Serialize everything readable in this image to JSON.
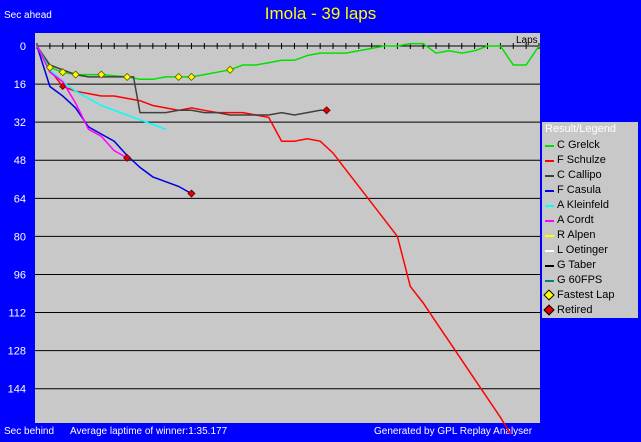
{
  "title": "Imola - 39 laps",
  "labels": {
    "top_left": "Sec ahead",
    "bottom_left": "Sec behind",
    "avg_laptime": "Average laptime of winner:1:35.177",
    "generated": "Generated by GPL Replay Analyser",
    "x_axis": "Laps"
  },
  "legend": {
    "title": "Result/Legend",
    "items": [
      {
        "label": "C Grelck",
        "color": "#00e000",
        "kind": "line"
      },
      {
        "label": "F Schulze",
        "color": "#ff0000",
        "kind": "line"
      },
      {
        "label": "C Callipo",
        "color": "#404040",
        "kind": "line"
      },
      {
        "label": "F Casula",
        "color": "#0000e0",
        "kind": "line"
      },
      {
        "label": "A Kleinfeld",
        "color": "#00ffff",
        "kind": "line"
      },
      {
        "label": "A Cordt",
        "color": "#ff00ff",
        "kind": "line"
      },
      {
        "label": "R Alpen",
        "color": "#ffff00",
        "kind": "line"
      },
      {
        "label": "L Oetinger",
        "color": "#ffffff",
        "kind": "line"
      },
      {
        "label": "G Taber",
        "color": "#000000",
        "kind": "line"
      },
      {
        "label": "G 60FPS",
        "color": "#008080",
        "kind": "line"
      },
      {
        "label": "Fastest Lap",
        "color": "#ffff00",
        "kind": "marker"
      },
      {
        "label": "Retired",
        "color": "#e00000",
        "kind": "marker"
      }
    ]
  },
  "chart_data": {
    "type": "line",
    "title": "Imola - 39 laps",
    "xlabel": "Laps",
    "ylabel": "Sec ahead",
    "x_range": [
      0,
      39
    ],
    "ylim": [
      0,
      160
    ],
    "y_ticks": [
      0,
      16,
      32,
      48,
      64,
      80,
      96,
      112,
      128,
      144
    ],
    "y_inverted": true,
    "grid": true,
    "legend_position": "right",
    "series": [
      {
        "name": "C Grelck",
        "color": "#00e000",
        "points": [
          [
            0,
            0
          ],
          [
            1,
            9
          ],
          [
            2,
            11
          ],
          [
            3,
            12
          ],
          [
            5,
            12
          ],
          [
            7,
            13
          ],
          [
            8,
            14
          ],
          [
            9,
            14
          ],
          [
            10,
            13
          ],
          [
            11,
            13
          ],
          [
            12,
            13
          ],
          [
            13,
            12
          ],
          [
            14,
            11
          ],
          [
            15,
            10
          ],
          [
            16,
            8
          ],
          [
            17,
            8
          ],
          [
            18,
            7
          ],
          [
            19,
            6
          ],
          [
            20,
            6
          ],
          [
            21,
            4
          ],
          [
            22,
            3
          ],
          [
            23,
            3
          ],
          [
            24,
            3
          ],
          [
            25,
            2
          ],
          [
            26,
            1
          ],
          [
            27,
            0
          ],
          [
            28,
            0
          ],
          [
            29,
            -1
          ],
          [
            30,
            -1
          ],
          [
            31,
            3
          ],
          [
            32,
            2
          ],
          [
            33,
            3
          ],
          [
            34,
            2
          ],
          [
            35,
            0
          ],
          [
            36,
            0
          ],
          [
            37,
            8
          ],
          [
            38,
            8
          ],
          [
            39,
            0
          ]
        ],
        "fastest_laps": [
          1,
          2,
          3,
          4,
          5,
          6,
          7,
          11,
          12,
          15
        ]
      },
      {
        "name": "F Schulze",
        "color": "#ff0000",
        "points": [
          [
            0,
            0
          ],
          [
            1,
            10
          ],
          [
            2,
            17
          ],
          [
            3,
            19
          ],
          [
            4,
            20
          ],
          [
            5,
            21
          ],
          [
            6,
            21
          ],
          [
            7,
            22
          ],
          [
            8,
            23
          ],
          [
            9,
            25
          ],
          [
            10,
            26
          ],
          [
            11,
            27
          ],
          [
            12,
            26
          ],
          [
            13,
            27
          ],
          [
            14,
            28
          ],
          [
            15,
            28
          ],
          [
            16,
            28
          ],
          [
            17,
            29
          ],
          [
            18,
            30
          ],
          [
            19,
            40
          ],
          [
            20,
            40
          ],
          [
            21,
            39
          ],
          [
            22,
            40
          ],
          [
            23,
            45
          ],
          [
            24,
            52
          ],
          [
            25,
            59
          ],
          [
            26,
            66
          ],
          [
            27,
            73
          ],
          [
            28,
            80
          ],
          [
            29,
            101
          ],
          [
            30,
            108
          ],
          [
            31,
            116
          ],
          [
            32,
            124
          ],
          [
            33,
            132
          ],
          [
            34,
            140
          ],
          [
            35,
            148
          ],
          [
            36,
            156
          ],
          [
            36.8,
            163
          ]
        ]
      },
      {
        "name": "C Callipo",
        "color": "#404040",
        "points": [
          [
            0,
            0
          ],
          [
            1,
            8
          ],
          [
            2,
            10
          ],
          [
            3,
            12
          ],
          [
            4,
            13
          ],
          [
            5,
            13
          ],
          [
            6,
            13
          ],
          [
            7,
            13
          ],
          [
            7.5,
            13
          ],
          [
            8,
            28
          ],
          [
            9,
            28
          ],
          [
            10,
            28
          ],
          [
            11,
            27
          ],
          [
            12,
            27
          ],
          [
            13,
            28
          ],
          [
            14,
            28
          ],
          [
            15,
            29
          ],
          [
            16,
            29
          ],
          [
            17,
            29
          ],
          [
            18,
            29
          ],
          [
            19,
            28
          ],
          [
            20,
            29
          ],
          [
            21,
            28
          ],
          [
            22,
            27
          ],
          [
            22.5,
            27
          ]
        ],
        "retired_at": 22.5
      },
      {
        "name": "F Casula",
        "color": "#0000e0",
        "points": [
          [
            0,
            0
          ],
          [
            1,
            17
          ],
          [
            2,
            21
          ],
          [
            3,
            26
          ],
          [
            4,
            34
          ],
          [
            5,
            37
          ],
          [
            6,
            40
          ],
          [
            7,
            46
          ],
          [
            8,
            51
          ],
          [
            9,
            55
          ],
          [
            10,
            57
          ],
          [
            11,
            59
          ],
          [
            12,
            62
          ]
        ],
        "retired_at": 12
      },
      {
        "name": "A Kleinfeld",
        "color": "#00ffff",
        "points": [
          [
            0,
            0
          ],
          [
            1,
            10
          ],
          [
            2,
            15
          ],
          [
            3,
            19
          ],
          [
            4,
            22
          ],
          [
            5,
            25
          ],
          [
            6,
            27
          ],
          [
            7,
            29
          ],
          [
            8,
            31
          ],
          [
            9,
            33
          ],
          [
            10,
            35
          ]
        ]
      },
      {
        "name": "A Cordt",
        "color": "#ff00ff",
        "points": [
          [
            0,
            0
          ],
          [
            1,
            11
          ],
          [
            2,
            15
          ],
          [
            3,
            24
          ],
          [
            4,
            35
          ],
          [
            5,
            38
          ],
          [
            6,
            44
          ],
          [
            7,
            47
          ]
        ],
        "retired_at": 7
      }
    ]
  }
}
